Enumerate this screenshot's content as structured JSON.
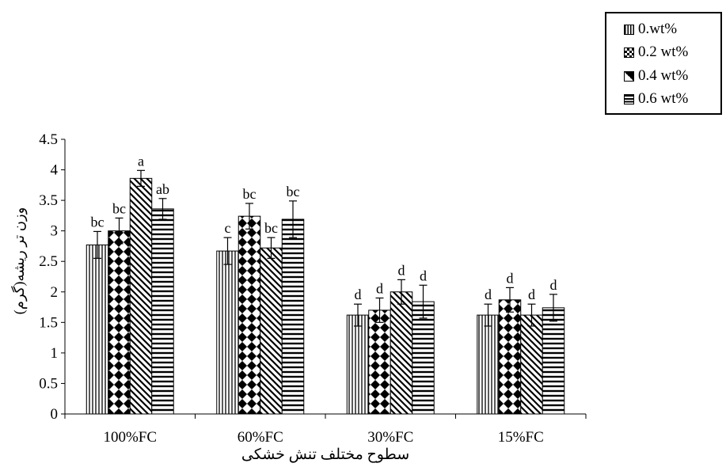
{
  "chart_data": {
    "type": "bar",
    "categories": [
      "100%FC",
      "60%FC",
      "30%FC",
      "15%FC"
    ],
    "series": [
      {
        "name": "0.wt%",
        "pattern": "vertical-lines",
        "values": [
          2.77,
          2.67,
          1.62,
          1.62
        ],
        "errors": [
          0.22,
          0.22,
          0.18,
          0.18
        ],
        "labels": [
          "bc",
          "c",
          "d",
          "d"
        ]
      },
      {
        "name": "0.2 wt%",
        "pattern": "diamonds",
        "values": [
          3.0,
          3.24,
          1.7,
          1.87
        ],
        "errors": [
          0.21,
          0.21,
          0.2,
          0.2
        ],
        "labels": [
          "bc",
          "bc",
          "d",
          "d"
        ]
      },
      {
        "name": "0.4 wt%",
        "pattern": "diagonal-lines",
        "values": [
          3.86,
          2.72,
          2.0,
          1.62
        ],
        "errors": [
          0.13,
          0.17,
          0.2,
          0.18
        ],
        "labels": [
          "a",
          "bc",
          "d",
          "d"
        ]
      },
      {
        "name": "0.6 wt%",
        "pattern": "horizontal-lines",
        "values": [
          3.36,
          3.19,
          1.84,
          1.74
        ],
        "errors": [
          0.17,
          0.3,
          0.27,
          0.22
        ],
        "labels": [
          "ab",
          "bc",
          "d",
          "d"
        ]
      }
    ],
    "xlabel": "سطوح مختلف تنش خشکی",
    "ylabel": "وزن تر ریشه(گرم)",
    "ylim": [
      0,
      4.5
    ],
    "yticks": [
      "0",
      "0.5",
      "1",
      "1.5",
      "2",
      "2.5",
      "3",
      "3.5",
      "4",
      "4.5"
    ],
    "grid": false,
    "legend_position": "top-right"
  }
}
